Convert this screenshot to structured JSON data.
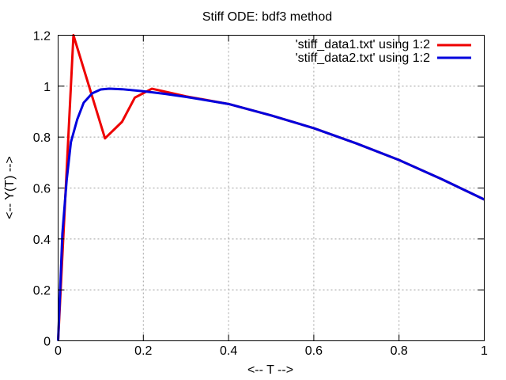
{
  "chart_data": {
    "type": "line",
    "title": "Stiff ODE: bdf3 method",
    "xlabel": "<-- T -->",
    "ylabel": "<-- Y(T) -->",
    "xlim": [
      0,
      1
    ],
    "ylim": [
      0,
      1.2
    ],
    "x_ticks": [
      0,
      0.2,
      0.4,
      0.6,
      0.8,
      1
    ],
    "x_tick_labels": [
      "0",
      "0.2",
      "0.4",
      "0.6",
      "0.8",
      "1"
    ],
    "y_ticks": [
      0,
      0.2,
      0.4,
      0.6,
      0.8,
      1,
      1.2
    ],
    "y_tick_labels": [
      "0",
      "0.2",
      "0.4",
      "0.6",
      "0.8",
      "1",
      "1.2"
    ],
    "grid": true,
    "legend_position": "top-right",
    "series": [
      {
        "name": "'stiff_data1.txt' using 1:2",
        "color": "#ee0000",
        "x": [
          0,
          0.036,
          0.11,
          0.15,
          0.18,
          0.22,
          0.26,
          0.3,
          0.4,
          0.5,
          0.6,
          0.7,
          0.8,
          0.9,
          1.0
        ],
        "y": [
          0,
          1.2,
          0.795,
          0.86,
          0.955,
          0.99,
          0.975,
          0.96,
          0.93,
          0.885,
          0.835,
          0.775,
          0.71,
          0.635,
          0.555
        ]
      },
      {
        "name": "'stiff_data2.txt' using 1:2",
        "color": "#0000dd",
        "x": [
          0,
          0.01,
          0.02,
          0.03,
          0.045,
          0.06,
          0.08,
          0.1,
          0.12,
          0.15,
          0.2,
          0.25,
          0.3,
          0.4,
          0.5,
          0.6,
          0.7,
          0.8,
          0.9,
          1.0
        ],
        "y": [
          0,
          0.42,
          0.63,
          0.78,
          0.87,
          0.935,
          0.972,
          0.987,
          0.99,
          0.988,
          0.98,
          0.97,
          0.958,
          0.93,
          0.885,
          0.835,
          0.775,
          0.71,
          0.635,
          0.555
        ]
      }
    ]
  }
}
